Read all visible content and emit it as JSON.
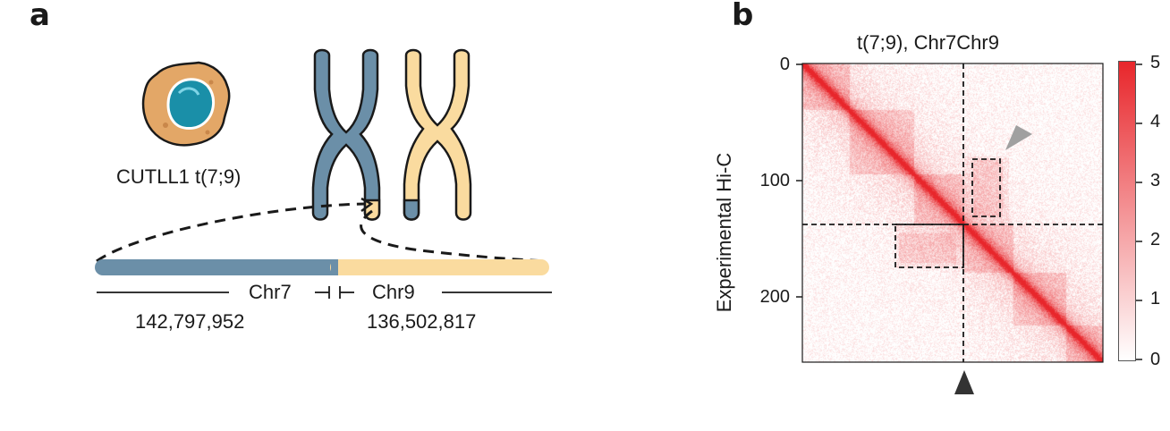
{
  "panel_a": {
    "letter": "a",
    "cell_label": "CUTLL1 t(7;9)",
    "chr_left_label": "Chr7",
    "chr_right_label": "Chr9",
    "chr_left_coord": "142,797,952",
    "chr_right_coord": "136,502,817",
    "colors": {
      "chr7": "#6b8fa8",
      "chr9": "#fadb9f",
      "cell_body": "#e3a767",
      "nucleus": "#1a8fa8"
    }
  },
  "panel_b": {
    "letter": "b",
    "title": "t(7;9), Chr7Chr9",
    "ylabel": "Experimental Hi-C",
    "y_ticks": [
      "0",
      "100",
      "200"
    ],
    "colorbar_ticks": [
      "5",
      "4",
      "3",
      "2",
      "1",
      "0"
    ],
    "colors": {
      "heat_high": "#e8262b",
      "heat_low": "#ffffff",
      "marker_gray": "#a0a0a0",
      "marker_dark": "#333333"
    }
  },
  "chart_data": {
    "type": "heatmap",
    "title": "t(7;9), Chr7Chr9",
    "xlabel": "",
    "ylabel": "Experimental Hi-C",
    "ylim": [
      0,
      257
    ],
    "xlim": [
      0,
      257
    ],
    "breakpoint_bin": 138,
    "color_range": [
      0,
      5
    ],
    "colorbar_ticks": [
      0,
      1,
      2,
      3,
      4,
      5
    ],
    "highlight_boxes": [
      {
        "x": [
          146,
          171
        ],
        "y": [
          82,
          131
        ]
      },
      {
        "x": [
          80,
          138
        ],
        "y": [
          138,
          176
        ]
      }
    ]
  }
}
